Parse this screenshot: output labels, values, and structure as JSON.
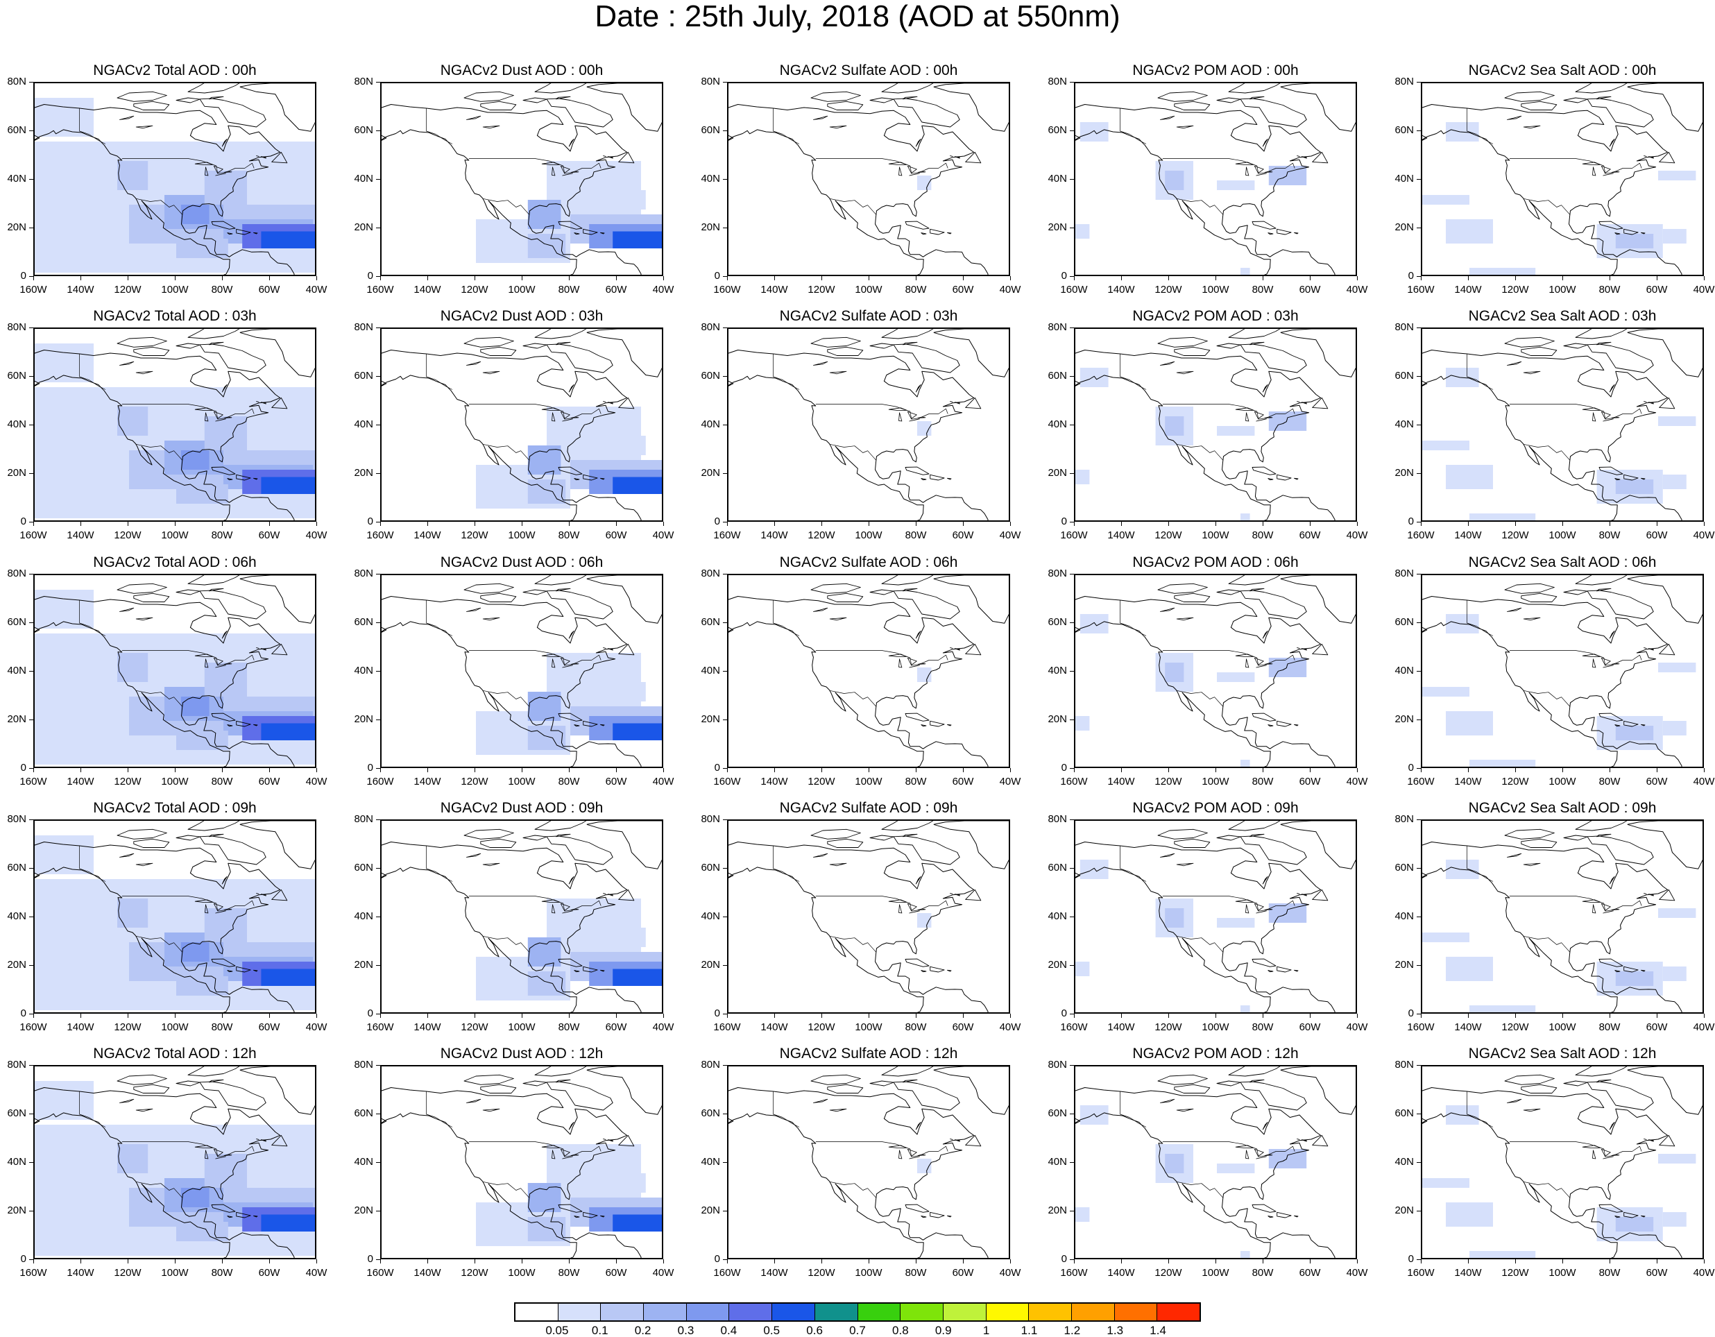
{
  "title": "Date : 25th July, 2018 (AOD at 550nm)",
  "lat_ticks": [
    "80N",
    "60N",
    "40N",
    "20N",
    "0"
  ],
  "lon_ticks": [
    "160W",
    "140W",
    "120W",
    "100W",
    "80W",
    "60W",
    "40W"
  ],
  "panel_titles": [
    [
      "NGACv2 Total AOD : 00h",
      "NGACv2 Dust AOD : 00h",
      "NGACv2 Sulfate AOD : 00h",
      "NGACv2 POM AOD : 00h",
      "NGACv2 Sea Salt AOD : 00h"
    ],
    [
      "NGACv2 Total AOD : 03h",
      "NGACv2 Dust AOD : 03h",
      "NGACv2 Sulfate AOD : 03h",
      "NGACv2 POM AOD : 03h",
      "NGACv2 Sea Salt AOD : 03h"
    ],
    [
      "NGACv2 Total AOD : 06h",
      "NGACv2 Dust AOD : 06h",
      "NGACv2 Sulfate AOD : 06h",
      "NGACv2 POM AOD : 06h",
      "NGACv2 Sea Salt AOD : 06h"
    ],
    [
      "NGACv2 Total AOD : 09h",
      "NGACv2 Dust AOD : 09h",
      "NGACv2 Sulfate AOD : 09h",
      "NGACv2 POM AOD : 09h",
      "NGACv2 Sea Salt  AOD : 09h"
    ],
    [
      "NGACv2 Total AOD  : 12h",
      "NGACv2 Dust AOD : 12h",
      "NGACv2 Sulfate AOD : 12h",
      "NGACv2 POM  AOD : 12h",
      "NGACv2 Sea Salt  AOD : 12h"
    ]
  ],
  "colorbar": {
    "labels": [
      "0.05",
      "0.1",
      "0.2",
      "0.3",
      "0.4",
      "0.5",
      "0.6",
      "0.7",
      "0.8",
      "0.9",
      "1",
      "1.1",
      "1.2",
      "1.3",
      "1.4"
    ],
    "colors": [
      "#ffffff",
      "#d6e0fb",
      "#b9c8f5",
      "#9db3f2",
      "#7e99ef",
      "#5f6ee9",
      "#1a56e8",
      "#10918c",
      "#38d00e",
      "#7ee40a",
      "#bff23a",
      "#fff800",
      "#ffc200",
      "#ffa000",
      "#ff7000",
      "#ff2800"
    ]
  },
  "colors": {
    "level_01": "#d6e0fb",
    "level_02": "#b9c8f5",
    "level_03": "#9db3f2",
    "level_04": "#7e99ef",
    "level_05": "#5f6ee9",
    "level_06": "#1a56e8"
  }
}
